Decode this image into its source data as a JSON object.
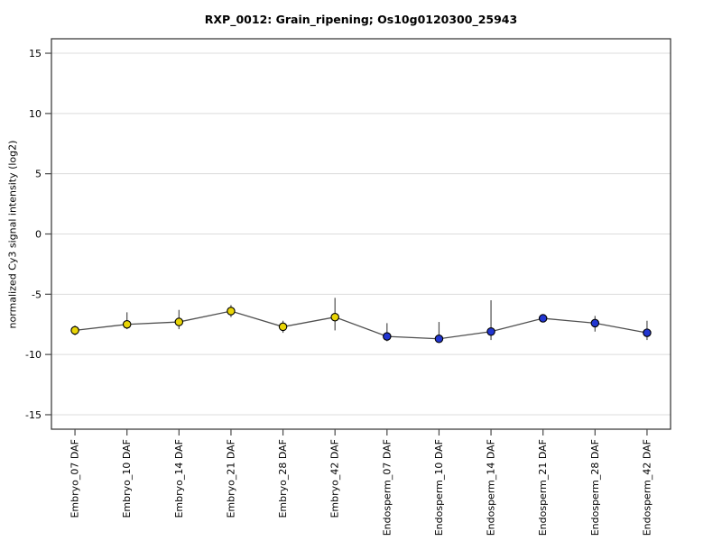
{
  "chart_data": {
    "type": "line",
    "title": "RXP_0012: Grain_ripening; Os10g0120300_25943",
    "xlabel": "",
    "ylabel": "normalized Cy3 signal intensity (log2)",
    "ylim": [
      -16.2,
      16.2
    ],
    "yticks": [
      15,
      10,
      5,
      0,
      -5,
      -10,
      -15
    ],
    "grid": true,
    "legend_position": "none",
    "categories": [
      "Embryo_07 DAF",
      "Embryo_10 DAF",
      "Embryo_14 DAF",
      "Embryo_21 DAF",
      "Embryo_28 DAF",
      "Embryo_42 DAF",
      "Endosperm_07 DAF",
      "Endosperm_10 DAF",
      "Endosperm_14 DAF",
      "Endosperm_21 DAF",
      "Endosperm_28 DAF",
      "Endosperm_42 DAF"
    ],
    "values": [
      -8.0,
      -7.5,
      -7.3,
      -6.4,
      -7.7,
      -6.9,
      -8.5,
      -8.7,
      -8.1,
      -7.0,
      -7.4,
      -8.2
    ],
    "err_high": [
      -7.6,
      -6.5,
      -6.3,
      -5.9,
      -7.2,
      -5.3,
      -7.4,
      -7.3,
      -5.5,
      -6.9,
      -6.8,
      -7.2
    ],
    "err_low": [
      -8.4,
      -7.9,
      -7.9,
      -6.9,
      -8.2,
      -8.0,
      -8.9,
      -9.0,
      -8.8,
      -7.1,
      -8.1,
      -8.8
    ],
    "groups": [
      "embryo",
      "embryo",
      "embryo",
      "embryo",
      "embryo",
      "embryo",
      "endosperm",
      "endosperm",
      "endosperm",
      "endosperm",
      "endosperm",
      "endosperm"
    ],
    "group_colors": {
      "embryo": "#e9d506",
      "endosperm": "#2236d1"
    },
    "colors": {
      "grid": "#dcdcdc",
      "axis": "#2e2e2e",
      "tick": "#4a4a4a",
      "line": "#4f4f4f",
      "point_border": "#000000",
      "text": "#000000"
    }
  }
}
